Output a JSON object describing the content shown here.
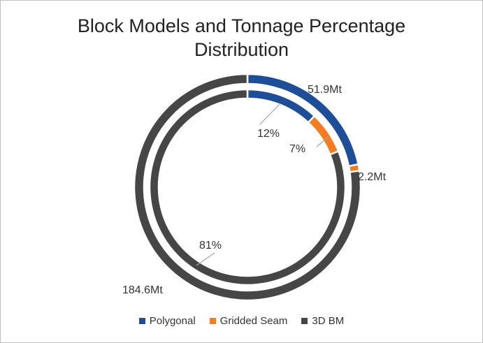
{
  "chart_data": {
    "type": "pie",
    "subtype": "double-doughnut",
    "title": "Block Models and Tonnage Percentage Distribution",
    "title_lines": [
      "Block Models and Tonnage Percentage",
      "Distribution"
    ],
    "categories": [
      "Polygonal",
      "Gridded Seam",
      "3D BM"
    ],
    "colors": [
      "#1f4e99",
      "#f57c20",
      "#464646"
    ],
    "series": [
      {
        "ring": "outer",
        "values": [
          51.9,
          2.2,
          184.6
        ],
        "labels": [
          "51.9Mt",
          "2.2Mt",
          "184.6Mt"
        ]
      },
      {
        "ring": "inner",
        "values": [
          12,
          7,
          81
        ],
        "labels": [
          "12%",
          "7%",
          "81%"
        ]
      }
    ],
    "legend_position": "bottom"
  }
}
